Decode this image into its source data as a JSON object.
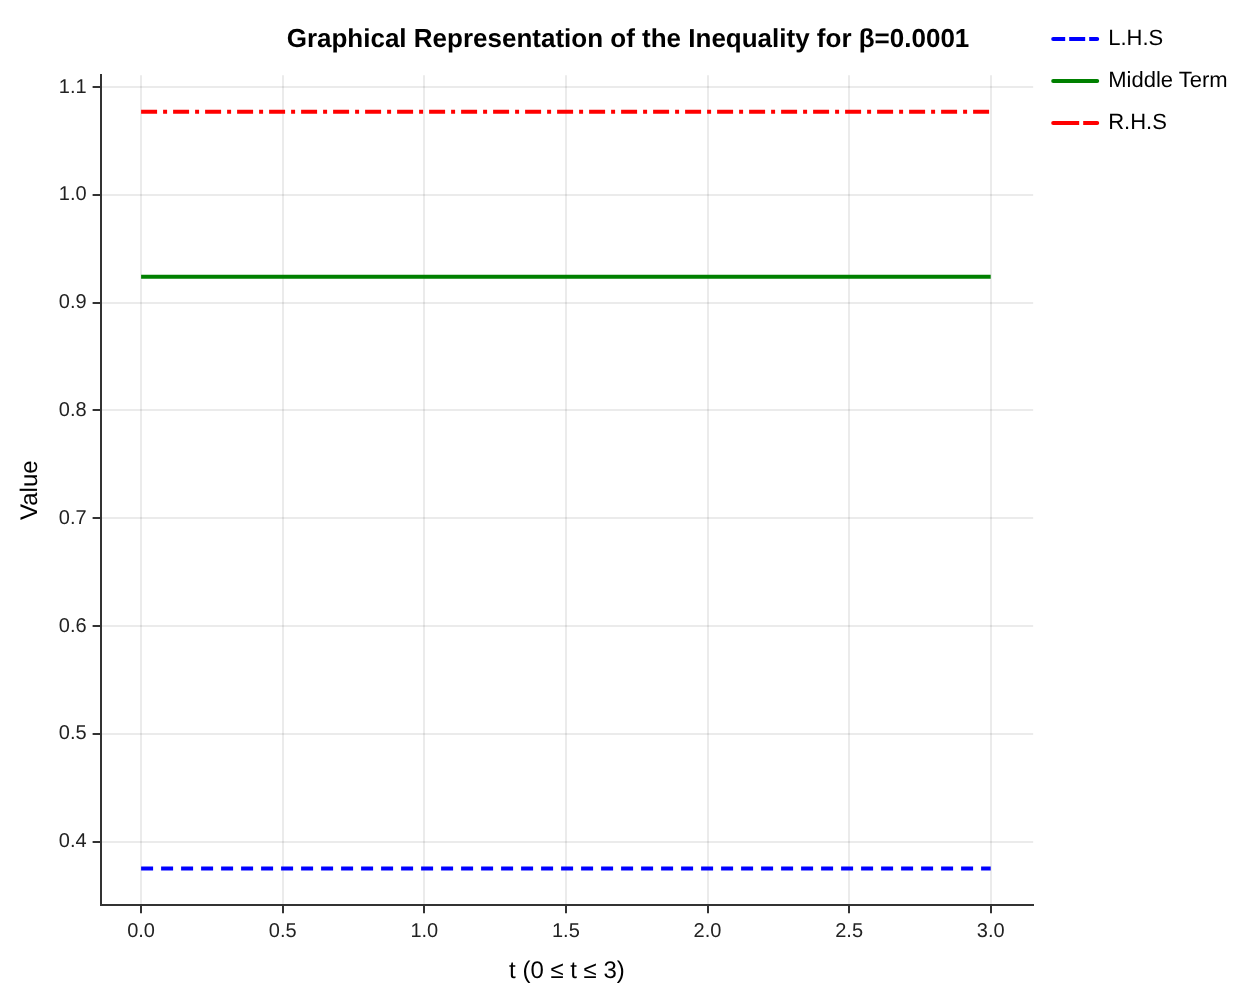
{
  "chart_data": {
    "type": "line",
    "title": "Graphical Representation of the Inequality for β=0.0001",
    "xlabel": "t (0 ≤ t ≤ 3)",
    "ylabel": "Value",
    "x": [
      0,
      3
    ],
    "series": [
      {
        "name": "L.H.S",
        "color": "#0000ff",
        "values": [
          0.375,
          0.375
        ],
        "line_style": "dashed"
      },
      {
        "name": "Middle Term",
        "color": "#008000",
        "values": [
          0.924,
          0.924
        ],
        "line_style": "solid"
      },
      {
        "name": "R.H.S",
        "color": "#ff0000",
        "values": [
          1.077,
          1.077
        ],
        "line_style": "dashdot"
      }
    ],
    "xlim": [
      -0.143,
      3.15
    ],
    "xticks": [
      {
        "value": 0,
        "label": "0.0"
      },
      {
        "value": 0.5,
        "label": "0.5"
      },
      {
        "value": 1,
        "label": "1.0"
      },
      {
        "value": 1.5,
        "label": "1.5"
      },
      {
        "value": 2,
        "label": "2.0"
      },
      {
        "value": 2.5,
        "label": "2.5"
      },
      {
        "value": 3,
        "label": "3.0"
      }
    ],
    "ylim": [
      0.341,
      1.111
    ],
    "yticks": [
      {
        "value": 0.4,
        "label": "0.4"
      },
      {
        "value": 0.5,
        "label": "0.5"
      },
      {
        "value": 0.6,
        "label": "0.6"
      },
      {
        "value": 0.7,
        "label": "0.7"
      },
      {
        "value": 0.8,
        "label": "0.8"
      },
      {
        "value": 0.9,
        "label": "0.9"
      },
      {
        "value": 1,
        "label": "1.0"
      },
      {
        "value": 1.1,
        "label": "1.1"
      }
    ],
    "grid": true,
    "legend": "right",
    "marker": "none"
  }
}
